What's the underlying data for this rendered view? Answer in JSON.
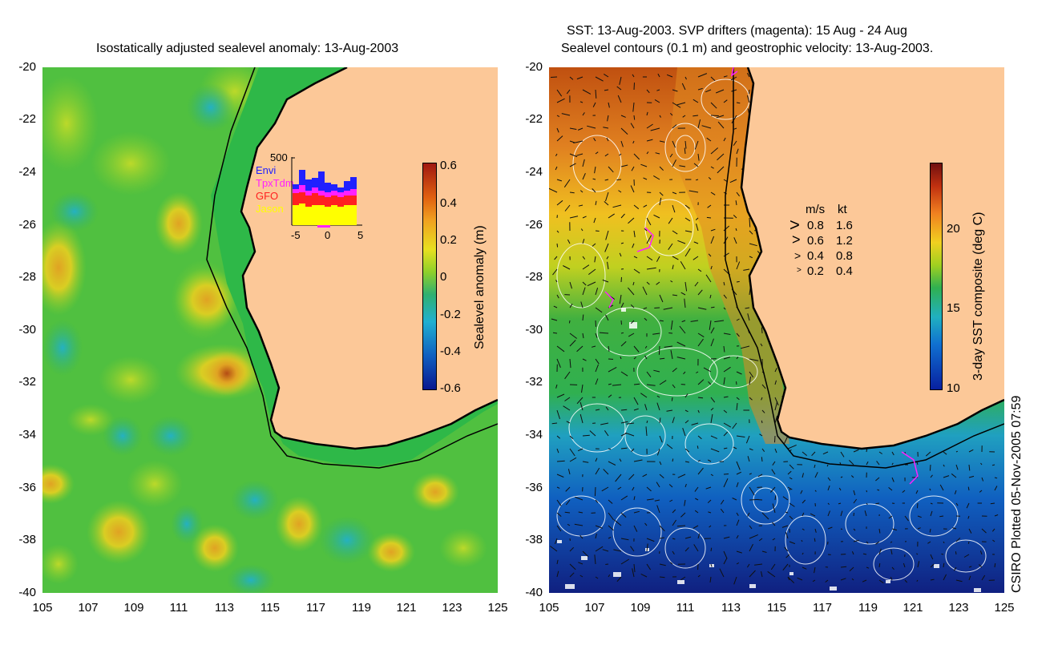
{
  "left_panel": {
    "title": "Isostatically adjusted sealevel anomaly: 13-Aug-2003",
    "colorbar_label": "Sealevel anomaly (m)",
    "colorbar_ticks": [
      "0.6",
      "0.4",
      "0.2",
      "0",
      "-0.2",
      "-0.4",
      "-0.6"
    ]
  },
  "right_panel": {
    "title_line1": "SST: 13-Aug-2003. SVP drifters (magenta): 15 Aug - 24 Aug",
    "title_line2": "Sealevel contours (0.1 m) and geostrophic velocity: 13-Aug-2003.",
    "colorbar_label": "3-day SST composite (deg C)",
    "colorbar_ticks": [
      "20",
      "15",
      "10"
    ],
    "velocity_legend": {
      "header_ms": "m/s",
      "header_kt": "kt",
      "rows": [
        {
          "ms": "0.8",
          "kt": "1.6"
        },
        {
          "ms": "0.6",
          "kt": "1.2"
        },
        {
          "ms": "0.4",
          "kt": "0.8"
        },
        {
          "ms": "0.2",
          "kt": "0.4"
        }
      ]
    }
  },
  "y_ticks": [
    "-20",
    "-22",
    "-24",
    "-26",
    "-28",
    "-30",
    "-32",
    "-34",
    "-36",
    "-38",
    "-40"
  ],
  "x_ticks": [
    "105",
    "107",
    "109",
    "111",
    "113",
    "115",
    "117",
    "119",
    "121",
    "123",
    "125"
  ],
  "inset_histogram": {
    "max_label": "500",
    "legend": [
      {
        "name": "Envi",
        "color": "#2020ff"
      },
      {
        "name": "TpxTdm",
        "color": "#ff20ff"
      },
      {
        "name": "GFO",
        "color": "#ff2020"
      },
      {
        "name": "Jason",
        "color": "#ffff00"
      }
    ],
    "x_ticks": [
      "-5",
      "0",
      "5"
    ]
  },
  "credit": "CSIRO Plotted 05-Nov-2005 07:59",
  "colors": {
    "land": "#fcc898",
    "ocean_anomaly": "#3cbf3c",
    "coast": "#000000"
  }
}
